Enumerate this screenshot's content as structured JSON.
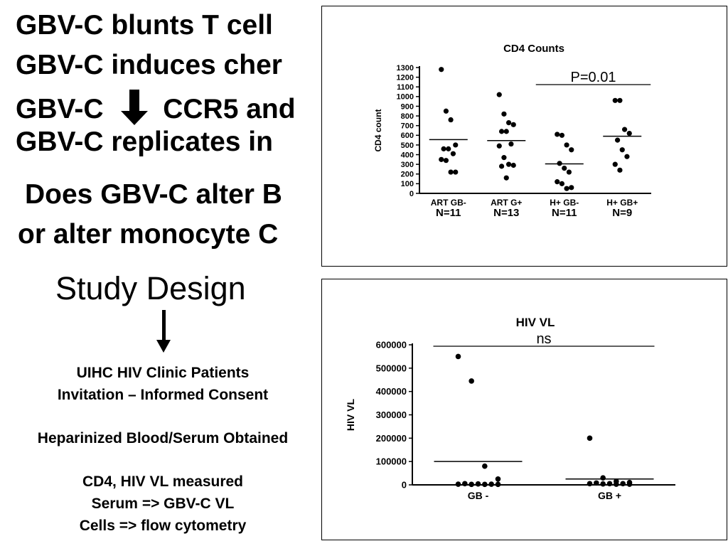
{
  "slide": {
    "bullets": [
      "GBV-C blunts T cell",
      "GBV-C induces cher",
      "CCR5 and",
      "GBV-C replicates in"
    ],
    "bullet3_prefix": "GBV-C",
    "question_lines": [
      "Does GBV-C alter B",
      "or alter monocyte C"
    ],
    "study_design": {
      "title": "Study Design",
      "steps": [
        "UIHC HIV Clinic Patients",
        "Invitation – Informed Consent",
        "Heparinized Blood/Serum Obtained",
        "CD4, HIV VL measured",
        "Serum => GBV-C VL",
        "Cells => flow cytometry"
      ]
    }
  },
  "chart_data": [
    {
      "type": "scatter",
      "title": "CD4 Counts",
      "ylabel": "CD4 count",
      "xlabel": "",
      "ylim": [
        0,
        1300
      ],
      "yticks": [
        0,
        100,
        200,
        300,
        400,
        500,
        600,
        700,
        800,
        900,
        1000,
        1100,
        1200,
        1300
      ],
      "categories": [
        "ART GB-",
        "ART G+",
        "H+ GB-",
        "H+ GB+"
      ],
      "sublabels": [
        "N=11",
        "N=13",
        "N=11",
        "N=9"
      ],
      "annotation": "P=0.01",
      "annotation_span": [
        "H+ GB-",
        "H+ GB+"
      ],
      "means": [
        555,
        545,
        305,
        590
      ],
      "groups": [
        [
          1280,
          850,
          760,
          500,
          460,
          460,
          410,
          350,
          340,
          220,
          220
        ],
        [
          1020,
          820,
          730,
          710,
          640,
          640,
          510,
          490,
          370,
          300,
          290,
          280,
          160
        ],
        [
          610,
          600,
          500,
          450,
          310,
          260,
          220,
          120,
          100,
          50,
          60
        ],
        [
          960,
          960,
          660,
          620,
          550,
          450,
          380,
          300,
          240
        ]
      ],
      "grid": false
    },
    {
      "type": "scatter",
      "title": "HIV VL",
      "ylabel": "HIV VL",
      "xlabel": "",
      "ylim": [
        0,
        600000
      ],
      "yticks": [
        0,
        100000,
        200000,
        300000,
        400000,
        500000,
        600000
      ],
      "categories": [
        "GB -",
        "GB +"
      ],
      "annotation": "ns",
      "annotation_span": [
        "GB -",
        "GB +"
      ],
      "means": [
        100000,
        25000
      ],
      "groups": [
        [
          550000,
          445000,
          80000,
          25000,
          5000,
          4000,
          3000,
          3000,
          2000,
          2000,
          2000
        ],
        [
          200000,
          30000,
          15000,
          10000,
          8000,
          5000,
          5000,
          5000,
          4000,
          3000,
          3000
        ]
      ],
      "grid": false
    }
  ]
}
